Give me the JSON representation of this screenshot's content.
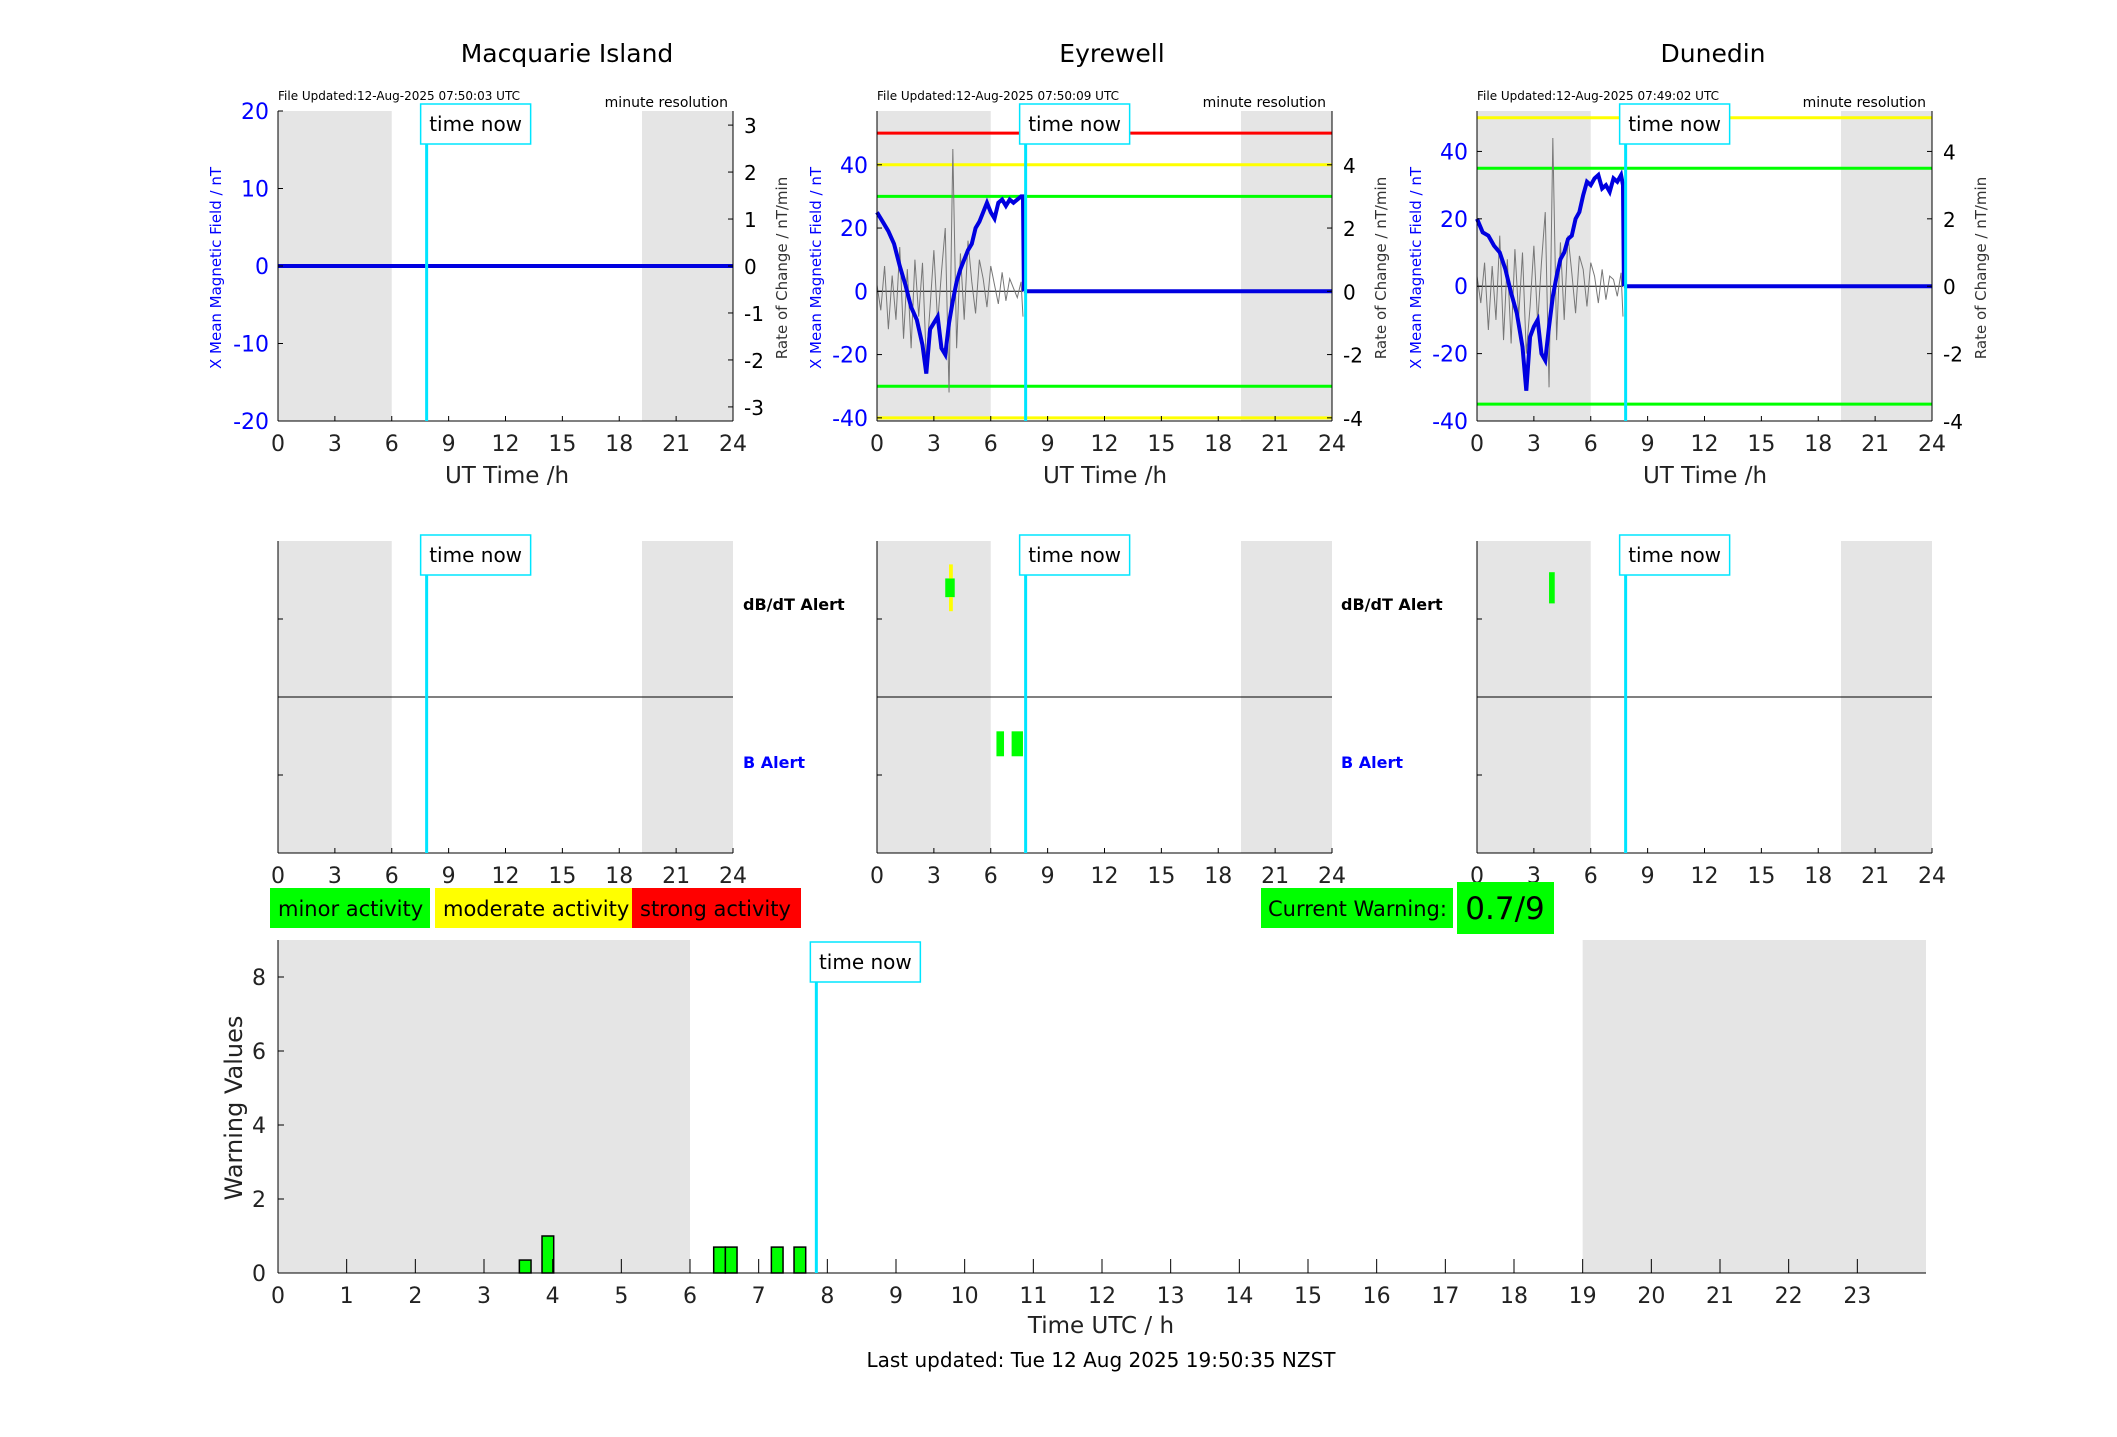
{
  "panels": [
    {
      "station": "Macquarie Island",
      "file_updated": "File Updated:12-Aug-2025 07:50:03 UTC",
      "resolution": "minute resolution",
      "ylabel_left": "X Mean Magnetic Field / nT",
      "ylabel_right": "Rate of Change / nT/min",
      "xlabel": "UT Time /h",
      "time_now_label": "time now",
      "ylim_left": [
        -20,
        20
      ],
      "yticks_left": [
        -20,
        -10,
        0,
        10,
        20
      ],
      "ylim_right": [
        -3.3,
        3.3
      ],
      "yticks_right": [
        -3,
        -2,
        -1,
        0,
        1,
        2,
        3
      ],
      "thresholds": [],
      "trace_x": [
        0,
        7.9
      ],
      "trace_y": [
        0,
        0
      ],
      "rate_x": [],
      "rate_y": [],
      "flat_from": 0,
      "dbdt_alerts": [],
      "b_alerts": []
    },
    {
      "station": "Eyrewell",
      "file_updated": "File Updated:12-Aug-2025 07:50:09 UTC",
      "resolution": "minute resolution",
      "ylabel_left": "X Mean Magnetic Field / nT",
      "ylabel_right": "Rate of Change / nT/min",
      "xlabel": "UT Time /h",
      "time_now_label": "time now",
      "ylim_left": [
        -41,
        57
      ],
      "yticks_left": [
        -40,
        -20,
        0,
        20,
        40
      ],
      "ylim_right": [
        -4.1,
        5.7
      ],
      "yticks_right": [
        -4,
        -2,
        0,
        2,
        4
      ],
      "thresholds": [
        {
          "value": 50,
          "color": "#ff0000"
        },
        {
          "value": 40,
          "color": "#ffff00"
        },
        {
          "value": 30,
          "color": "#00ff00"
        },
        {
          "value": -30,
          "color": "#00ff00"
        },
        {
          "value": -40,
          "color": "#ffff00"
        }
      ],
      "trace_x": [
        0,
        0.3,
        0.6,
        0.9,
        1.2,
        1.5,
        1.8,
        2.1,
        2.4,
        2.6,
        2.8,
        3.0,
        3.2,
        3.4,
        3.6,
        3.8,
        4.0,
        4.2,
        4.4,
        4.6,
        4.8,
        5.0,
        5.2,
        5.4,
        5.6,
        5.8,
        6.0,
        6.2,
        6.4,
        6.6,
        6.8,
        7.0,
        7.2,
        7.4,
        7.6,
        7.7,
        7.75
      ],
      "trace_y": [
        25,
        22,
        19,
        15,
        8,
        2,
        -5,
        -9,
        -17,
        -26,
        -12,
        -10,
        -8,
        -18,
        -20,
        -10,
        -3,
        3,
        7,
        10,
        13,
        15,
        20,
        22,
        25,
        28,
        25,
        23,
        28,
        29,
        27,
        29,
        28,
        29,
        30,
        30,
        0
      ],
      "rate_x": [
        0,
        0.2,
        0.4,
        0.6,
        0.8,
        1.0,
        1.2,
        1.4,
        1.6,
        1.8,
        2.0,
        2.2,
        2.4,
        2.6,
        2.8,
        3.0,
        3.2,
        3.4,
        3.6,
        3.8,
        4.0,
        4.2,
        4.4,
        4.6,
        4.8,
        5.0,
        5.2,
        5.4,
        5.6,
        5.8,
        6.0,
        6.2,
        6.4,
        6.6,
        6.8,
        7.0,
        7.2,
        7.4,
        7.6,
        7.7
      ],
      "rate_y": [
        0.2,
        -0.6,
        0.8,
        -1.2,
        0.5,
        -0.9,
        1.4,
        -1.5,
        0.7,
        -1.8,
        1.0,
        -0.8,
        0.9,
        -2.2,
        -0.5,
        1.3,
        -1.0,
        0.6,
        2.0,
        -3.2,
        4.5,
        -1.8,
        1.2,
        -0.9,
        1.6,
        0.3,
        -0.7,
        1.0,
        0.4,
        -0.5,
        0.8,
        0.2,
        -0.4,
        0.6,
        -0.3,
        0.4,
        0.1,
        -0.2,
        0.3,
        -0.8
      ],
      "flat_from": 7.75,
      "dbdt_alerts": [
        {
          "x0": 3.6,
          "x1": 4.1,
          "y0": 0.24,
          "y1": 0.36,
          "color": "#00ff00"
        },
        {
          "x0": 3.8,
          "x1": 4.0,
          "y0": 0.15,
          "y1": 0.24,
          "color": "#ffff00"
        },
        {
          "x0": 3.8,
          "x1": 4.0,
          "y0": 0.36,
          "y1": 0.45,
          "color": "#ffff00"
        }
      ],
      "b_alerts": [
        {
          "x0": 6.3,
          "x1": 6.7,
          "y0": 0.22,
          "y1": 0.38,
          "color": "#00ff00"
        },
        {
          "x0": 7.1,
          "x1": 7.7,
          "y0": 0.22,
          "y1": 0.38,
          "color": "#00ff00"
        }
      ]
    },
    {
      "station": "Dunedin",
      "file_updated": "File Updated:12-Aug-2025 07:49:02 UTC",
      "resolution": "minute resolution",
      "ylabel_left": "X Mean Magnetic Field / nT",
      "ylabel_right": "Rate of Change / nT/min",
      "xlabel": "UT Time /h",
      "time_now_label": "time now",
      "ylim_left": [
        -40,
        52
      ],
      "yticks_left": [
        -40,
        -20,
        0,
        20,
        40
      ],
      "ylim_right": [
        -4,
        5.2
      ],
      "yticks_right": [
        -4,
        -2,
        0,
        2,
        4
      ],
      "thresholds": [
        {
          "value": 50,
          "color": "#ffff00"
        },
        {
          "value": 35,
          "color": "#00ff00"
        },
        {
          "value": -35,
          "color": "#00ff00"
        }
      ],
      "trace_x": [
        0,
        0.3,
        0.6,
        0.9,
        1.2,
        1.5,
        1.8,
        2.1,
        2.4,
        2.6,
        2.8,
        3.0,
        3.2,
        3.4,
        3.6,
        3.8,
        4.0,
        4.2,
        4.4,
        4.6,
        4.8,
        5.0,
        5.2,
        5.4,
        5.6,
        5.8,
        6.0,
        6.2,
        6.4,
        6.6,
        6.8,
        7.0,
        7.2,
        7.4,
        7.6,
        7.7,
        7.75
      ],
      "trace_y": [
        20,
        16,
        15,
        12,
        10,
        5,
        -2,
        -8,
        -18,
        -31,
        -15,
        -12,
        -10,
        -20,
        -22,
        -12,
        -3,
        3,
        8,
        10,
        14,
        15,
        20,
        22,
        27,
        31,
        30,
        32,
        33,
        29,
        30,
        28,
        32,
        31,
        33,
        30,
        0
      ],
      "rate_x": [
        0,
        0.2,
        0.4,
        0.6,
        0.8,
        1.0,
        1.2,
        1.4,
        1.6,
        1.8,
        2.0,
        2.2,
        2.4,
        2.6,
        2.8,
        3.0,
        3.2,
        3.4,
        3.6,
        3.8,
        4.0,
        4.2,
        4.4,
        4.6,
        4.8,
        5.0,
        5.2,
        5.4,
        5.6,
        5.8,
        6.0,
        6.2,
        6.4,
        6.6,
        6.8,
        7.0,
        7.2,
        7.4,
        7.6,
        7.7
      ],
      "rate_y": [
        0.3,
        -0.5,
        0.7,
        -1.3,
        0.6,
        -1.0,
        1.5,
        -1.6,
        0.8,
        -1.7,
        1.1,
        -0.9,
        1.0,
        -2.0,
        -0.6,
        1.2,
        -1.1,
        0.7,
        2.2,
        -3.0,
        4.4,
        -1.6,
        1.3,
        -1.0,
        1.5,
        0.4,
        -0.8,
        0.9,
        0.5,
        -0.6,
        0.7,
        0.3,
        -0.5,
        0.5,
        -0.4,
        0.3,
        0.2,
        -0.3,
        0.4,
        -0.9
      ],
      "flat_from": 7.75,
      "dbdt_alerts": [
        {
          "x0": 3.8,
          "x1": 4.1,
          "y0": 0.2,
          "y1": 0.4,
          "color": "#00ff00"
        }
      ],
      "b_alerts": []
    }
  ],
  "alert_labels": {
    "dbdt": "dB/dT Alert",
    "b": "B Alert"
  },
  "time_axis": {
    "xlim": [
      0,
      24
    ],
    "xticks": [
      0,
      3,
      6,
      9,
      12,
      15,
      18,
      21,
      24
    ],
    "now": 7.84,
    "night_shading": [
      [
        0,
        6
      ],
      [
        19.2,
        24
      ]
    ]
  },
  "legend": [
    {
      "label": "minor activity",
      "color": "#00ff00"
    },
    {
      "label": "moderate activity",
      "color": "#ffff00"
    },
    {
      "label": "strong activity",
      "color": "#ff0000"
    }
  ],
  "current_warning": {
    "label": "Current Warning:",
    "value": "0.7/9",
    "color": "#00ff00"
  },
  "chart_data": {
    "type": "bar",
    "xlabel": "Time UTC / h",
    "ylabel": "Warning Values",
    "xlim": [
      0,
      24
    ],
    "xticks": [
      0,
      1,
      2,
      3,
      4,
      5,
      6,
      7,
      8,
      9,
      10,
      11,
      12,
      13,
      14,
      15,
      16,
      17,
      18,
      19,
      20,
      21,
      22,
      23
    ],
    "ylim": [
      0,
      9
    ],
    "yticks": [
      0,
      2,
      4,
      6,
      8
    ],
    "night_shading": [
      [
        0,
        6
      ],
      [
        19,
        24
      ]
    ],
    "time_now": 7.84,
    "time_now_label": "time now",
    "bars": [
      {
        "x": 3.6,
        "value": 0.35,
        "color": "#00ff00"
      },
      {
        "x": 3.93,
        "value": 1.0,
        "color": "#00ff00"
      },
      {
        "x": 6.43,
        "value": 0.7,
        "color": "#00ff00"
      },
      {
        "x": 6.6,
        "value": 0.7,
        "color": "#00ff00"
      },
      {
        "x": 7.27,
        "value": 0.7,
        "color": "#00ff00"
      },
      {
        "x": 7.6,
        "value": 0.7,
        "color": "#00ff00"
      }
    ],
    "bar_width_h": 0.17
  },
  "footer": "Last updated: Tue 12 Aug 2025 19:50:35 NZST"
}
